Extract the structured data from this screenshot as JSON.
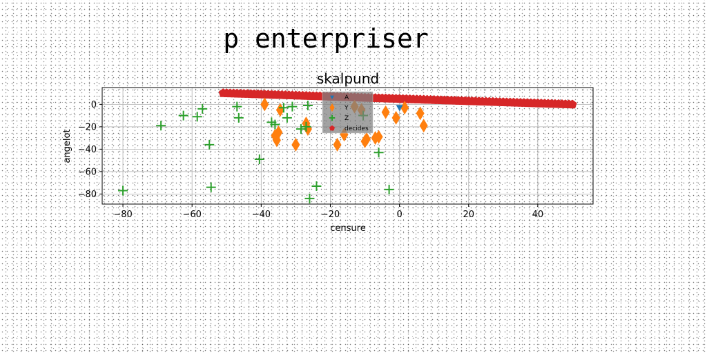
{
  "page": {
    "title": "p enterpriser"
  },
  "chart_data": {
    "type": "scatter",
    "title": "skalpund",
    "xlabel": "censure",
    "ylabel": "angelot",
    "xlim": [
      -86,
      56
    ],
    "ylim": [
      -89,
      15
    ],
    "xticks": [
      -80,
      -60,
      -40,
      -20,
      0,
      20,
      40
    ],
    "yticks": [
      0,
      -20,
      -40,
      -60,
      -80
    ],
    "grid": true,
    "legend_position": "top-center",
    "series": [
      {
        "name": "A",
        "color": "#1f77b4",
        "marker": "triangle-down",
        "x": [
          0
        ],
        "y": [
          -3
        ]
      },
      {
        "name": "Y",
        "color": "#ff7f0e",
        "marker": "thin-diamond",
        "x": [
          -39,
          -36,
          -35.5,
          -35,
          -34.5,
          -30,
          -27,
          -26.5,
          -18,
          -16,
          -10,
          -9.5,
          -7,
          -6,
          -4,
          -1,
          1.5,
          6,
          7,
          -11,
          -13
        ],
        "y": [
          0,
          -28,
          -32,
          -25,
          -5,
          -36,
          -17,
          -22,
          -36,
          -27,
          -33,
          -31,
          -30,
          -29,
          -7,
          -12,
          -3,
          -8,
          -19,
          -5,
          -2
        ]
      },
      {
        "name": "Z",
        "color": "#2ca02c",
        "marker": "plus",
        "x": [
          -80,
          -69,
          -62.5,
          -58.5,
          -57,
          -55,
          -54.5,
          -47,
          -46.5,
          -40.5,
          -37,
          -36,
          -33.5,
          -32.5,
          -31,
          -28.5,
          -27,
          -26.5,
          -26,
          -24,
          -10.5,
          -6,
          -3
        ],
        "y": [
          -77,
          -19,
          -10,
          -11,
          -4,
          -36,
          -74,
          -2,
          -12,
          -49,
          -16,
          -18,
          -3,
          -12,
          -2,
          -22,
          -20,
          -1,
          -84,
          -73,
          -10,
          -43,
          -76
        ]
      },
      {
        "name": "decides",
        "color": "#d62728",
        "marker": "pentagon",
        "x": [
          -51,
          -50,
          -49,
          -48,
          -47,
          -46,
          -45,
          -44,
          -43,
          -42,
          -41,
          -40,
          -39,
          -38,
          -37,
          -36,
          -35,
          -34,
          -33,
          -32,
          -31,
          -30,
          -29,
          -28,
          -27,
          -26,
          -25,
          -24,
          -23,
          -22,
          -21,
          -20,
          -19,
          -18,
          -17,
          -16,
          -15,
          -14,
          -13,
          -12,
          -11,
          -10,
          -9,
          -8,
          -7,
          -6,
          -5,
          -4,
          -3,
          -2,
          -1,
          0,
          1,
          2,
          3,
          4,
          5,
          6,
          7,
          8,
          9,
          10,
          11,
          12,
          13,
          14,
          15,
          16,
          17,
          18,
          19,
          20,
          21,
          22,
          23,
          24,
          25,
          26,
          27,
          28,
          29,
          30,
          31,
          32,
          33,
          34,
          35,
          36,
          37,
          38,
          39,
          40,
          41,
          42,
          43,
          44,
          45,
          46,
          47,
          48,
          49,
          50
        ],
        "y": [
          10,
          9.9,
          9.8,
          9.7,
          9.6,
          9.5,
          9.4,
          9.3,
          9.2,
          9.1,
          9,
          8.9,
          8.8,
          8.7,
          8.6,
          8.5,
          8.4,
          8.3,
          8.2,
          8.1,
          8,
          7.9,
          7.8,
          7.7,
          7.6,
          7.5,
          7.4,
          7.3,
          7.2,
          7.1,
          7,
          6.9,
          6.8,
          6.7,
          6.6,
          6.5,
          6.4,
          6.3,
          6.2,
          6.1,
          6,
          5.9,
          5.8,
          5.7,
          5.6,
          5.5,
          5.4,
          5.3,
          5.2,
          5.1,
          5,
          4.9,
          4.8,
          4.7,
          4.6,
          4.5,
          4.4,
          4.3,
          4.2,
          4.1,
          4,
          3.9,
          3.8,
          3.7,
          3.6,
          3.5,
          3.4,
          3.3,
          3.2,
          3.1,
          3,
          2.9,
          2.8,
          2.7,
          2.6,
          2.5,
          2.4,
          2.3,
          2.2,
          2.1,
          2,
          1.9,
          1.8,
          1.7,
          1.6,
          1.5,
          1.4,
          1.3,
          1.2,
          1.1,
          1,
          0.9,
          0.8,
          0.7,
          0.6,
          0.5,
          0.4,
          0.3,
          0.2,
          0.1,
          0,
          -0.1
        ]
      }
    ]
  }
}
